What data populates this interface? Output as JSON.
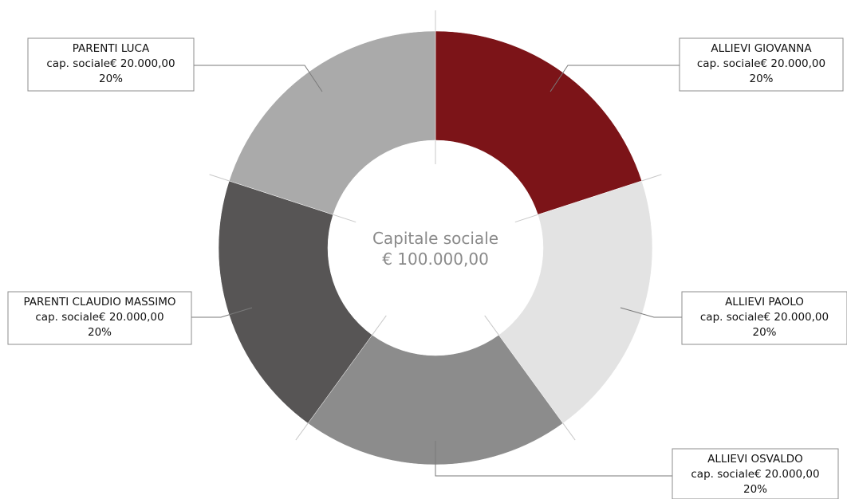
{
  "chart_data": {
    "type": "pie",
    "variant": "donut",
    "center_text": {
      "line1": "Capitale sociale",
      "line2": "€ 100.000,00"
    },
    "slices": [
      {
        "name": "ALLIEVI GIOVANNA",
        "detail": "cap. sociale€ 20.000,00",
        "pct_label": "20%",
        "value": 20000,
        "color": "#7c1418"
      },
      {
        "name": "ALLIEVI PAOLO",
        "detail": "cap. sociale€ 20.000,00",
        "pct_label": "20%",
        "value": 20000,
        "color": "#e3e3e3"
      },
      {
        "name": "ALLIEVI OSVALDO",
        "detail": "cap. sociale€ 20.000,00",
        "pct_label": "20%",
        "value": 20000,
        "color": "#8c8c8c"
      },
      {
        "name": "PARENTI CLAUDIO MASSIMO",
        "detail": "cap. sociale€ 20.000,00",
        "pct_label": "20%",
        "value": 20000,
        "color": "#575555"
      },
      {
        "name": "PARENTI LUCA",
        "detail": "cap. sociale€ 20.000,00",
        "pct_label": "20%",
        "value": 20000,
        "color": "#aaaaaa"
      }
    ],
    "legend": "none"
  }
}
